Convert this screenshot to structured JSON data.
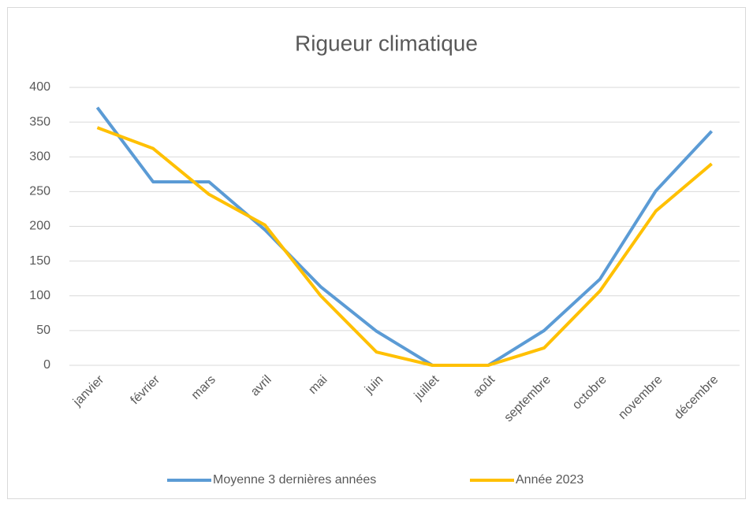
{
  "chart_data": {
    "type": "line",
    "title": "Rigueur climatique",
    "categories": [
      "janvier",
      "février",
      "mars",
      "avril",
      "mai",
      "juin",
      "juillet",
      "août",
      "septembre",
      "octobre",
      "novembre",
      "décembre"
    ],
    "series": [
      {
        "name": "Moyenne 3 dernières années",
        "color": "#5b9bd5",
        "values": [
          371,
          264,
          264,
          195,
          113,
          49,
          0,
          0,
          50,
          124,
          251,
          337
        ]
      },
      {
        "name": "Année 2023",
        "color": "#ffc000",
        "values": [
          342,
          312,
          246,
          202,
          100,
          19,
          0,
          0,
          25,
          107,
          222,
          290
        ]
      }
    ],
    "ylim": [
      0,
      400
    ],
    "yticks": [
      0,
      50,
      100,
      150,
      200,
      250,
      300,
      350,
      400
    ],
    "grid": true,
    "legend": "bottom"
  }
}
